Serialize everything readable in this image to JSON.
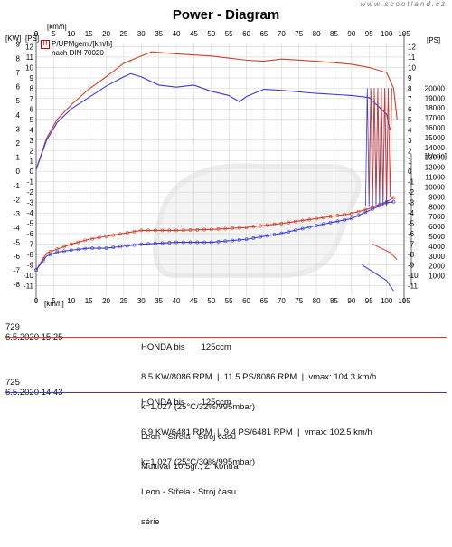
{
  "title": "Power - Diagram",
  "watermark": "www.scootland.cz",
  "units": {
    "left_top": "[KW]",
    "left_top2": "[PS]",
    "right_top": "[PS]",
    "x_top": "[km/h]",
    "x_bottom": "[km/h]",
    "rpm_unit": "[1/min]"
  },
  "legend": {
    "icon": "H",
    "line1": "P/UPMgem./[km/h]",
    "line2": "nach DIN 70020"
  },
  "colors": {
    "run1": "#d23c2a",
    "run2": "#3a3ad8",
    "grid": "#d6d6d6"
  },
  "chart_data": {
    "type": "line",
    "title": "Power - Diagram",
    "xlabel": "[km/h]",
    "x_ticks": [
      0,
      5,
      10,
      15,
      20,
      25,
      30,
      35,
      40,
      45,
      50,
      55,
      60,
      65,
      70,
      75,
      80,
      85,
      90,
      95,
      100,
      105
    ],
    "xlim": [
      0,
      105
    ],
    "kw_ticks": [
      9,
      8,
      7,
      6,
      5,
      4,
      3,
      2,
      1,
      0,
      -1,
      -2,
      -3,
      -4,
      -5,
      -6,
      -7,
      -8
    ],
    "ps_ticks": [
      12,
      11,
      10,
      9,
      8,
      7,
      6,
      5,
      4,
      3,
      2,
      1,
      0,
      -1,
      -2,
      -3,
      -4,
      -5,
      -6,
      -7,
      -8,
      -9,
      -10,
      -11
    ],
    "rpm_ticks": [
      20000,
      19000,
      18000,
      17000,
      16000,
      15000,
      14000,
      13000,
      12000,
      11000,
      10000,
      9000,
      8000,
      7000,
      6000,
      5000,
      4000,
      3000,
      2000,
      1000
    ],
    "ylim_ps": [
      -12,
      12.3
    ],
    "rpm_zero_ps": -11,
    "rpm_span_ps": 19,
    "series": [
      {
        "name": "729",
        "metric": "power_ps",
        "points": [
          [
            0,
            0.2
          ],
          [
            3,
            3.2
          ],
          [
            6,
            5.0
          ],
          [
            10,
            6.4
          ],
          [
            15,
            7.9
          ],
          [
            20,
            9.1
          ],
          [
            25,
            10.4
          ],
          [
            30,
            11.1
          ],
          [
            33,
            11.5
          ],
          [
            40,
            11.3
          ],
          [
            50,
            11.1
          ],
          [
            60,
            10.7
          ],
          [
            65,
            10.6
          ],
          [
            70,
            10.8
          ],
          [
            80,
            10.6
          ],
          [
            90,
            10.3
          ],
          [
            95,
            10.0
          ],
          [
            100,
            9.5
          ],
          [
            102,
            8.0
          ],
          [
            103,
            5.0
          ]
        ]
      },
      {
        "name": "725",
        "metric": "power_ps",
        "points": [
          [
            0,
            0.2
          ],
          [
            3,
            3.0
          ],
          [
            6,
            4.7
          ],
          [
            10,
            6.0
          ],
          [
            15,
            7.1
          ],
          [
            20,
            8.2
          ],
          [
            25,
            9.1
          ],
          [
            27,
            9.4
          ],
          [
            30,
            9.1
          ],
          [
            35,
            8.3
          ],
          [
            40,
            8.1
          ],
          [
            45,
            8.3
          ],
          [
            50,
            7.7
          ],
          [
            55,
            7.3
          ],
          [
            58,
            6.7
          ],
          [
            60,
            7.2
          ],
          [
            65,
            7.9
          ],
          [
            70,
            7.8
          ],
          [
            80,
            7.5
          ],
          [
            90,
            7.3
          ],
          [
            95,
            7.1
          ],
          [
            100,
            5.5
          ],
          [
            101,
            4.0
          ]
        ]
      },
      {
        "name": "729",
        "metric": "rpm",
        "points": [
          [
            0,
            1600
          ],
          [
            3,
            3300
          ],
          [
            6,
            3700
          ],
          [
            10,
            4200
          ],
          [
            15,
            4700
          ],
          [
            20,
            5000
          ],
          [
            25,
            5300
          ],
          [
            30,
            5600
          ],
          [
            40,
            5600
          ],
          [
            50,
            5700
          ],
          [
            60,
            5900
          ],
          [
            70,
            6300
          ],
          [
            80,
            6800
          ],
          [
            90,
            7300
          ],
          [
            95,
            7800
          ],
          [
            100,
            8500
          ],
          [
            102,
            8900
          ]
        ]
      },
      {
        "name": "725",
        "metric": "rpm",
        "points": [
          [
            0,
            1600
          ],
          [
            3,
            3000
          ],
          [
            6,
            3400
          ],
          [
            10,
            3600
          ],
          [
            15,
            3800
          ],
          [
            20,
            3800
          ],
          [
            25,
            4000
          ],
          [
            30,
            4200
          ],
          [
            40,
            4400
          ],
          [
            50,
            4400
          ],
          [
            60,
            4700
          ],
          [
            70,
            5300
          ],
          [
            80,
            6100
          ],
          [
            90,
            6800
          ],
          [
            95,
            7600
          ],
          [
            100,
            8400
          ],
          [
            102,
            8500
          ]
        ]
      }
    ]
  },
  "runs": [
    {
      "id": "729",
      "date": "6.5.2020  15:25",
      "vehicle": "HONDA bis",
      "ccm": "125ccm",
      "line2": "8.5 KW/8086 RPM  |  11.5 PS/8086 RPM  |  vmax: 104.3 km/h",
      "line3": "k=1,027 (25°C/32%/995mbar)",
      "line4": "Leon - Střela - Stroj času",
      "line5": "Multivar 10,5gr., Ž  kontra"
    },
    {
      "id": "725",
      "date": "6.5.2020  14:43",
      "vehicle": "HONDA bis",
      "ccm": "125ccm",
      "line2": "6.9 KW/6481 RPM  |  9.4 PS/6481 RPM  |  vmax: 102.5 km/h",
      "line3": "k=1,027 (25°C/30%/995mbar)",
      "line4": "Leon - Střela - Stroj času",
      "line5": "série"
    }
  ]
}
